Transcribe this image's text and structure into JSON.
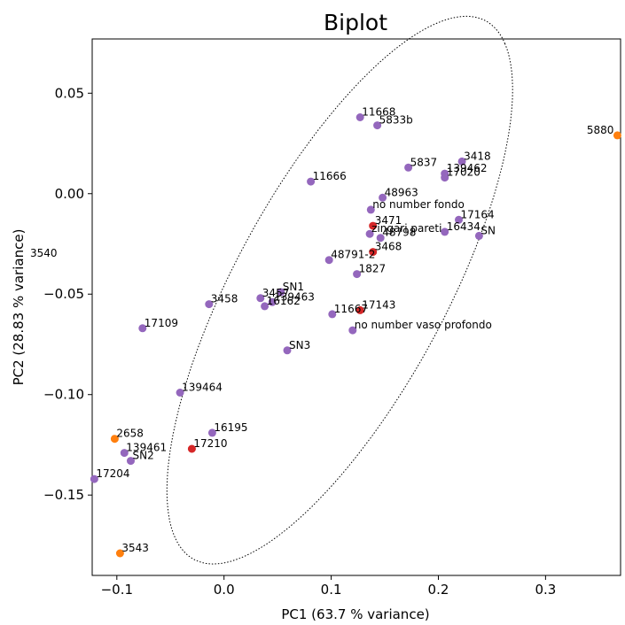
{
  "chart_data": {
    "type": "scatter",
    "title": "Biplot",
    "xlabel": "PC1 (63.7 % variance)",
    "ylabel": "PC2 (28.83 % variance)",
    "xlim": [
      -0.123,
      0.37
    ],
    "ylim": [
      -0.19,
      0.077
    ],
    "x_ticks": [
      -0.1,
      0.0,
      0.1,
      0.2,
      0.3
    ],
    "x_tick_labels": [
      "−0.1",
      "0.0",
      "0.1",
      "0.2",
      "0.3"
    ],
    "y_ticks": [
      -0.15,
      -0.1,
      -0.05,
      0.0,
      0.05
    ],
    "y_tick_labels": [
      "−0.15",
      "−0.10",
      "−0.05",
      "0.00",
      "0.05"
    ],
    "grid": false,
    "colors": {
      "purple": "#9467bd",
      "red": "#d62728",
      "orange": "#ff7f0e"
    },
    "points": [
      {
        "label": "11668",
        "x": 0.127,
        "y": 0.038,
        "color": "purple"
      },
      {
        "label": "5833b",
        "x": 0.143,
        "y": 0.034,
        "color": "purple"
      },
      {
        "label": "5837",
        "x": 0.172,
        "y": 0.013,
        "color": "purple"
      },
      {
        "label": "3418",
        "x": 0.222,
        "y": 0.016,
        "color": "purple"
      },
      {
        "label": "139462",
        "x": 0.206,
        "y": 0.01,
        "color": "purple"
      },
      {
        "label": "17020",
        "x": 0.206,
        "y": 0.008,
        "color": "purple"
      },
      {
        "label": "11666",
        "x": 0.081,
        "y": 0.006,
        "color": "purple"
      },
      {
        "label": "48963",
        "x": 0.148,
        "y": -0.002,
        "color": "purple"
      },
      {
        "label": "no number fondo",
        "x": 0.137,
        "y": -0.008,
        "color": "purple"
      },
      {
        "label": "17164",
        "x": 0.219,
        "y": -0.013,
        "color": "purple"
      },
      {
        "label": "16434",
        "x": 0.206,
        "y": -0.019,
        "color": "purple"
      },
      {
        "label": "SN",
        "x": 0.238,
        "y": -0.021,
        "color": "purple"
      },
      {
        "label": "3471",
        "x": 0.139,
        "y": -0.016,
        "color": "red"
      },
      {
        "label": "zingari pareti",
        "x": 0.136,
        "y": -0.02,
        "color": "purple"
      },
      {
        "label": "48798",
        "x": 0.146,
        "y": -0.022,
        "color": "purple"
      },
      {
        "label": "3468",
        "x": 0.139,
        "y": -0.029,
        "color": "red"
      },
      {
        "label": "48791-2",
        "x": 0.098,
        "y": -0.033,
        "color": "purple"
      },
      {
        "label": "1827",
        "x": 0.124,
        "y": -0.04,
        "color": "purple"
      },
      {
        "label": "SN1",
        "x": 0.053,
        "y": -0.049,
        "color": "purple"
      },
      {
        "label": "3457",
        "x": 0.034,
        "y": -0.052,
        "color": "purple"
      },
      {
        "label": "3458",
        "x": -0.014,
        "y": -0.055,
        "color": "purple"
      },
      {
        "label": "139463",
        "x": 0.045,
        "y": -0.054,
        "color": "purple"
      },
      {
        "label": "16162",
        "x": 0.038,
        "y": -0.056,
        "color": "purple"
      },
      {
        "label": "17143",
        "x": 0.127,
        "y": -0.058,
        "color": "red"
      },
      {
        "label": "11667",
        "x": 0.101,
        "y": -0.06,
        "color": "purple"
      },
      {
        "label": "no number vaso profondo",
        "x": 0.12,
        "y": -0.068,
        "color": "purple"
      },
      {
        "label": "17109",
        "x": -0.076,
        "y": -0.067,
        "color": "purple"
      },
      {
        "label": "SN3",
        "x": 0.059,
        "y": -0.078,
        "color": "purple"
      },
      {
        "label": "139464",
        "x": -0.041,
        "y": -0.099,
        "color": "purple"
      },
      {
        "label": "16195",
        "x": -0.011,
        "y": -0.119,
        "color": "purple"
      },
      {
        "label": "17210",
        "x": -0.03,
        "y": -0.127,
        "color": "red"
      },
      {
        "label": "2658",
        "x": -0.102,
        "y": -0.122,
        "color": "orange"
      },
      {
        "label": "139461",
        "x": -0.093,
        "y": -0.129,
        "color": "purple"
      },
      {
        "label": "SN2",
        "x": -0.087,
        "y": -0.133,
        "color": "purple"
      },
      {
        "label": "17204",
        "x": -0.121,
        "y": -0.142,
        "color": "purple"
      },
      {
        "label": "3543",
        "x": -0.097,
        "y": -0.179,
        "color": "orange"
      },
      {
        "label": "5880",
        "x": 0.367,
        "y": 0.029,
        "color": "orange"
      }
    ],
    "outside_annotation": "3540",
    "confidence_ellipse": {
      "style": "dotted",
      "center": [
        0.108,
        -0.048
      ],
      "semi_major": 0.197,
      "semi_minor": 0.076,
      "angle_deg": 38.5
    }
  }
}
